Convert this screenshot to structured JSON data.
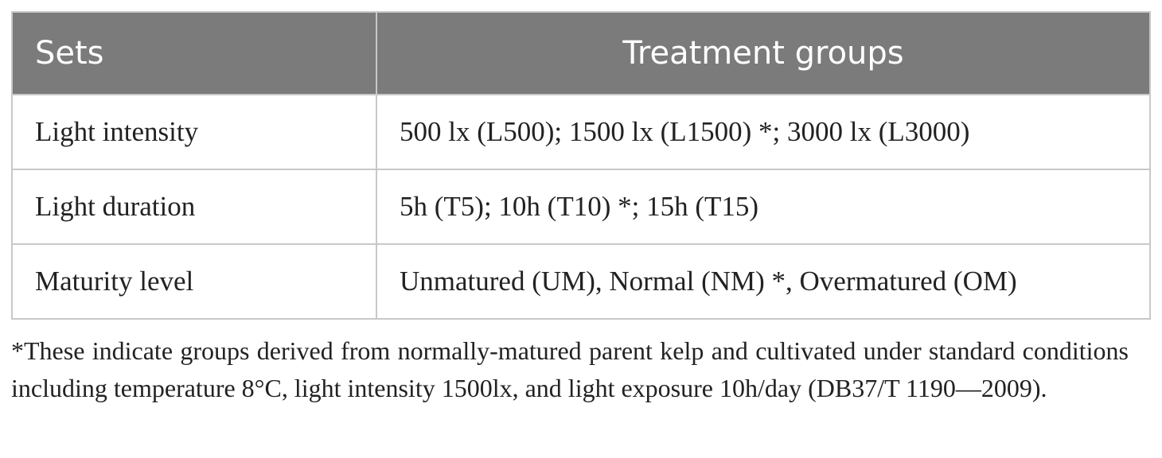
{
  "table": {
    "header": [
      "Sets",
      "Treatment groups"
    ],
    "rows": [
      [
        "Light intensity",
        "500 lx (L500); 1500 lx (L1500) *; 3000 lx (L3000)"
      ],
      [
        "Light duration",
        "5h (T5); 10h (T10) *; 15h (T15)"
      ],
      [
        "Maturity level",
        "Unmatured (UM), Normal (NM) *, Overmatured (OM)"
      ]
    ]
  },
  "footnote": "*These indicate groups derived from normally-matured parent kelp and cultivated under standard conditions including temperature 8°C, light intensity 1500lx, and light exposure 10h/day (DB37/T 1190—2009)."
}
